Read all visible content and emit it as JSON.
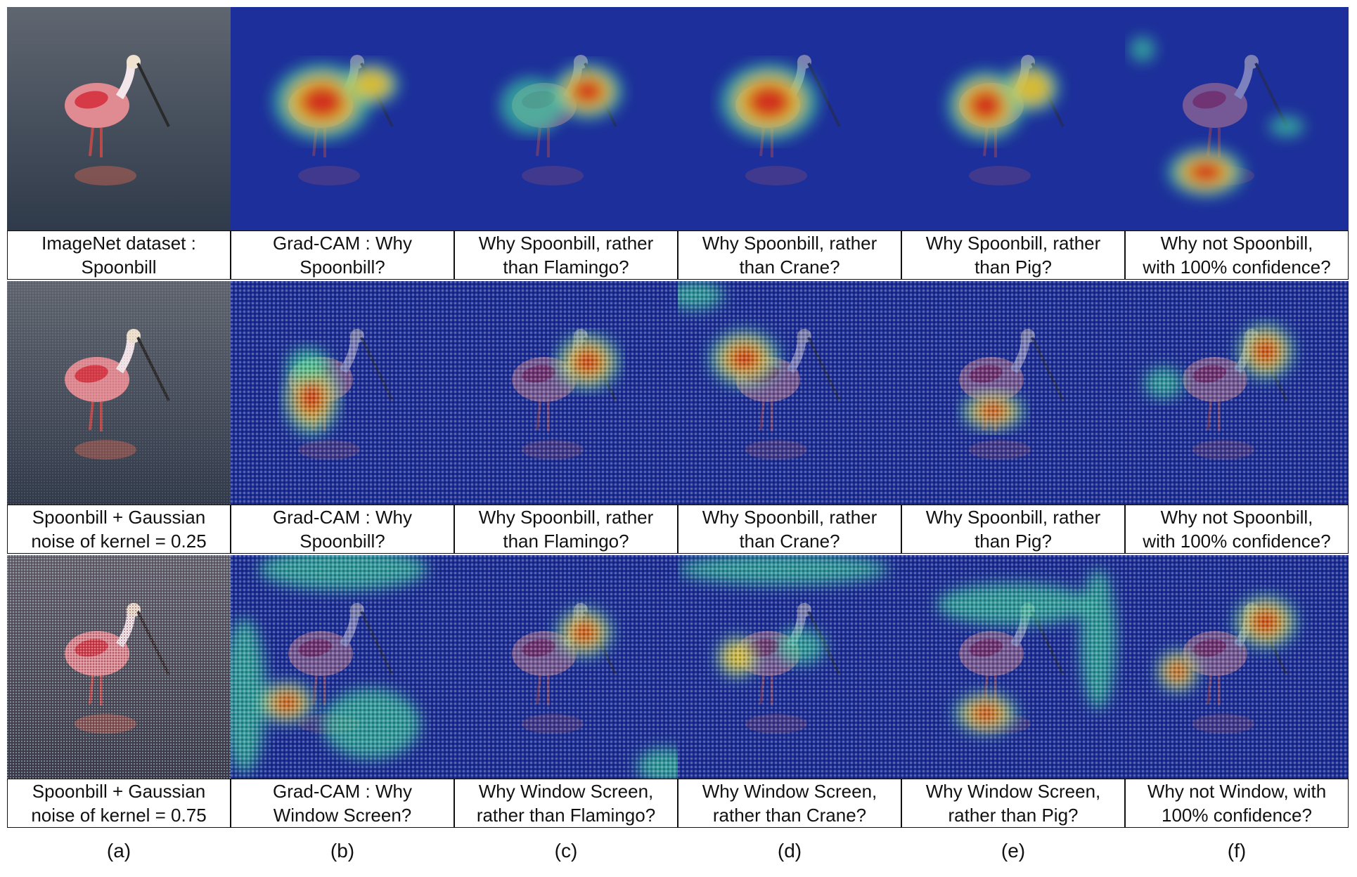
{
  "rows": [
    {
      "captions": [
        [
          "ImageNet dataset :",
          "Spoonbill"
        ],
        [
          "Grad-CAM : Why",
          "Spoonbill?"
        ],
        [
          "Why Spoonbill, rather",
          "than Flamingo?"
        ],
        [
          "Why Spoonbill, rather",
          "than  Crane?"
        ],
        [
          "Why Spoonbill, rather",
          "than Pig?"
        ],
        [
          "Why not Spoonbill,",
          "with 100% confidence?"
        ]
      ]
    },
    {
      "captions": [
        [
          "Spoonbill + Gaussian",
          "noise of kernel = 0.25"
        ],
        [
          "Grad-CAM : Why",
          "Spoonbill?"
        ],
        [
          "Why Spoonbill, rather",
          "than Flamingo?"
        ],
        [
          "Why Spoonbill, rather",
          "than  Crane?"
        ],
        [
          "Why Spoonbill, rather",
          "than Pig?"
        ],
        [
          "Why not Spoonbill,",
          "with 100% confidence?"
        ]
      ]
    },
    {
      "captions": [
        [
          "Spoonbill + Gaussian",
          "noise of kernel = 0.75"
        ],
        [
          "Grad-CAM : Why",
          "Window Screen?"
        ],
        [
          "Why Window Screen,",
          "rather than Flamingo?"
        ],
        [
          "Why Window Screen,",
          "rather than  Crane?"
        ],
        [
          "Why Window Screen,",
          "rather than Pig?"
        ],
        [
          "Why not Window, with",
          "100% confidence?"
        ]
      ]
    }
  ],
  "column_labels": [
    "(a)",
    "(b)",
    "(c)",
    "(d)",
    "(e)",
    "(f)"
  ],
  "colors": {
    "water": "#2f3a4a",
    "heatmap_base": "#1d2f9a",
    "bird": "#e08a92",
    "hot": "#d0241b"
  }
}
